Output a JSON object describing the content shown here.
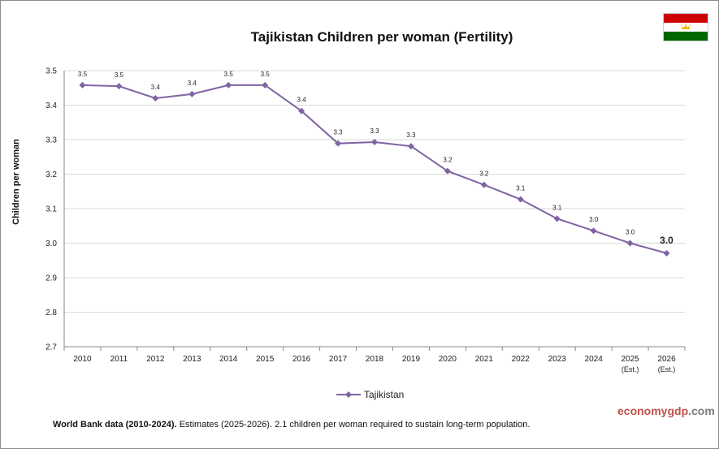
{
  "chart_data": {
    "type": "line",
    "title": "Tajikistan Children per woman (Fertility)",
    "ylabel": "Children per woman",
    "xlabel": "",
    "categories": [
      "2010",
      "2011",
      "2012",
      "2013",
      "2014",
      "2015",
      "2016",
      "2017",
      "2018",
      "2019",
      "2020",
      "2021",
      "2022",
      "2023",
      "2024",
      "2025",
      "2026"
    ],
    "category_sublabels": [
      "",
      "",
      "",
      "",
      "",
      "",
      "",
      "",
      "",
      "",
      "",
      "",
      "",
      "",
      "",
      "(Est.)",
      "(Est.)"
    ],
    "ylim": [
      2.7,
      3.5
    ],
    "yticks": [
      "2.7",
      "2.8",
      "2.9",
      "3.0",
      "3.1",
      "3.2",
      "3.3",
      "3.4",
      "3.5"
    ],
    "grid": true,
    "legend_position": "bottom",
    "series": [
      {
        "name": "Tajikistan",
        "color": "#8064a2",
        "marker": "diamond",
        "values": [
          3.458,
          3.455,
          3.42,
          3.432,
          3.458,
          3.458,
          3.383,
          3.289,
          3.293,
          3.281,
          3.209,
          3.169,
          3.127,
          3.071,
          3.036,
          3.0,
          2.971
        ],
        "labels": [
          "3.5",
          "3.5",
          "3.4",
          "3.4",
          "3.5",
          "3.5",
          "3.4",
          "3.3",
          "3.3",
          "3.3",
          "3.2",
          "3.2",
          "3.1",
          "3.1",
          "3.0",
          "3.0",
          "3.0"
        ]
      }
    ]
  },
  "brand": {
    "part1": "economy",
    "part2": "gdp",
    "part3": ".com"
  },
  "footer": {
    "bold": "World Bank data (2010-2024).",
    "rest": " Estimates (2025-2026). 2.1 children per woman required to sustain long-term population."
  },
  "flag": {
    "country": "Tajikistan",
    "colors": [
      "#cc0000",
      "#ffffff",
      "#006600"
    ],
    "emblem_color": "#f2b705"
  }
}
